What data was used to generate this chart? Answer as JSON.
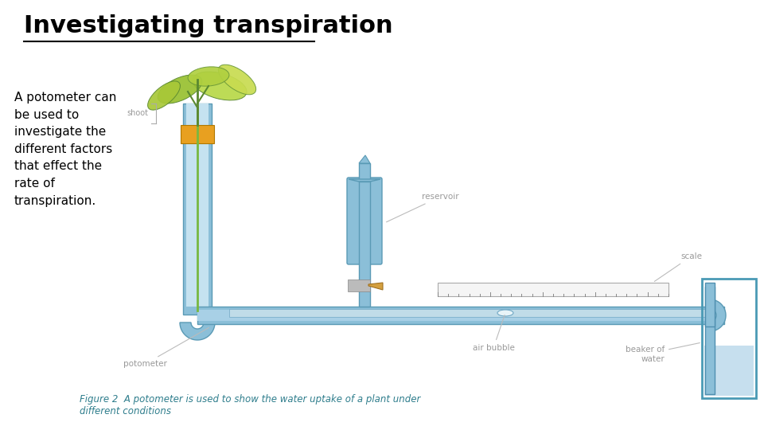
{
  "title": "Investigating transpiration",
  "title_fontsize": 22,
  "title_color": "#000000",
  "body_text": "A potometer can\nbe used to\ninvestigate the\ndifferent factors\nthat effect the\nrate of\ntranspiration.",
  "body_fontsize": 11,
  "body_color": "#000000",
  "figure2_text": "Figure 2  A potometer is used to show the water uptake of a plant under\ndifferent conditions",
  "figure2_fontsize": 8.5,
  "figure2_color": "#2e7d8c",
  "bg_color": "#ffffff",
  "pipe_color": "#8bbfd8",
  "pipe_color2": "#a8d0e6",
  "pipe_outline": "#5a9ab5",
  "plant_pot_color": "#e8a020",
  "valve_color": "#c8a060",
  "label_color": "#999999",
  "scale_bg": "#f5f5f5",
  "beaker_color": "#7eb8d4",
  "water_color": "#b8d8ea"
}
